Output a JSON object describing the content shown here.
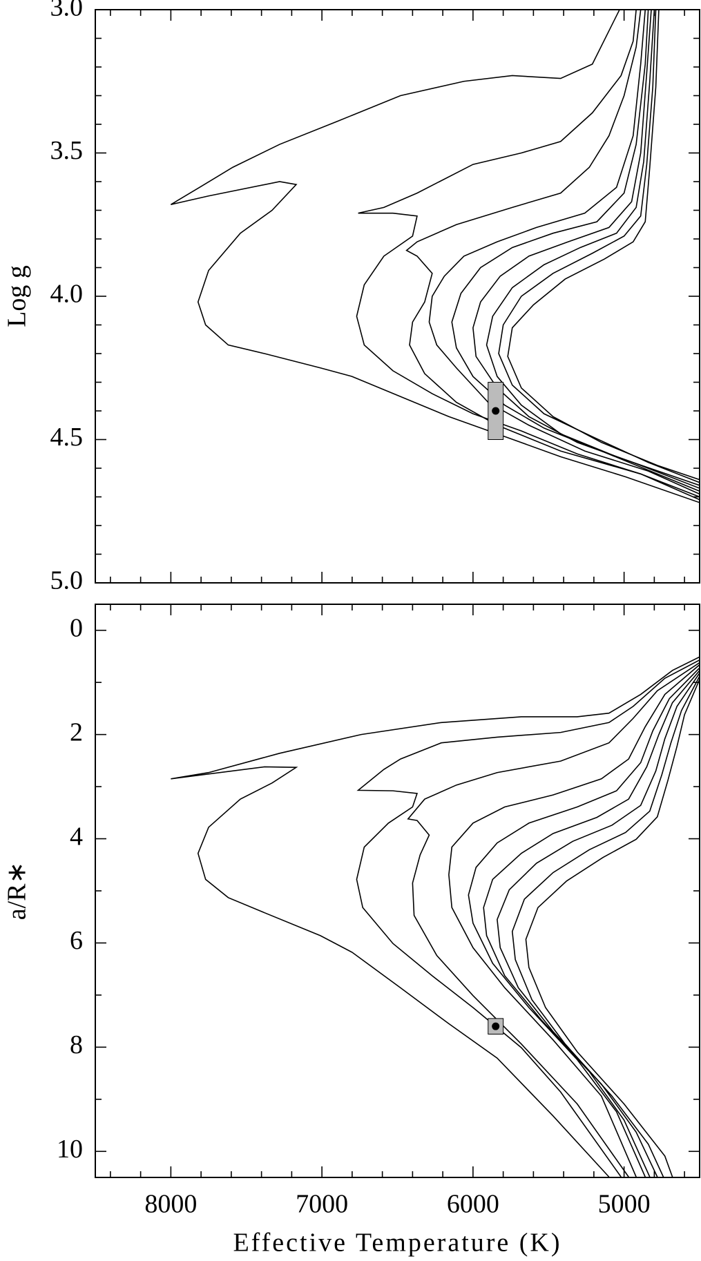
{
  "chart_data": [
    {
      "type": "line",
      "ylabel": "Log g",
      "color": "#000000",
      "xlim": [
        8500,
        4500
      ],
      "ylim": [
        5,
        3
      ],
      "xticks": [
        8000,
        7000,
        6000,
        5000
      ],
      "xminorticks": [
        8400,
        8200,
        7800,
        7600,
        7400,
        7200,
        6800,
        6600,
        6400,
        6200,
        5800,
        5600,
        5400,
        5200,
        4800,
        4600
      ],
      "yticks": [
        {
          "value": 3,
          "label": "3.0"
        },
        3.5,
        {
          "value": 4,
          "label": "4.0"
        },
        4.5,
        {
          "value": 5,
          "label": "5.0"
        }
      ],
      "yminorticks": [
        3.1,
        3.2,
        3.3,
        3.4,
        3.6,
        3.7,
        3.8,
        3.9,
        4.1,
        4.2,
        4.3,
        4.4,
        4.6,
        4.7,
        4.8,
        4.9
      ],
      "series": [
        {
          "x": [
            5030,
            5210,
            5420,
            5740,
            6060,
            6480,
            6900,
            7280,
            7590,
            7810,
            8000,
            7750,
            7280,
            7170,
            7330,
            7540,
            7750,
            7820,
            7770,
            7620,
            7380,
            7010,
            6800,
            6480,
            6160,
            5840,
            5420,
            4990,
            4500
          ],
          "values": [
            3.0,
            3.19,
            3.24,
            3.23,
            3.25,
            3.3,
            3.39,
            3.47,
            3.55,
            3.62,
            3.68,
            3.65,
            3.6,
            3.61,
            3.7,
            3.78,
            3.91,
            4.02,
            4.1,
            4.17,
            4.2,
            4.25,
            4.28,
            4.35,
            4.42,
            4.48,
            4.56,
            4.63,
            4.72
          ]
        },
        {
          "x": [
            4920,
            4940,
            5020,
            5210,
            5420,
            5680,
            6000,
            6370,
            6590,
            6760,
            6530,
            6370,
            6400,
            6590,
            6720,
            6770,
            6720,
            6530,
            6270,
            6000,
            5680,
            5310,
            4890,
            4500
          ],
          "values": [
            3.0,
            3.11,
            3.23,
            3.36,
            3.46,
            3.5,
            3.54,
            3.64,
            3.69,
            3.71,
            3.71,
            3.72,
            3.79,
            3.86,
            3.96,
            4.07,
            4.17,
            4.26,
            4.34,
            4.41,
            4.47,
            4.55,
            4.62,
            4.71
          ]
        },
        {
          "x": [
            4890,
            4920,
            5000,
            5100,
            5230,
            5420,
            5740,
            6110,
            6370,
            6440,
            6370,
            6270,
            6320,
            6400,
            6420,
            6320,
            6110,
            5840,
            5420,
            4890,
            4500
          ],
          "values": [
            3.0,
            3.13,
            3.3,
            3.44,
            3.55,
            3.64,
            3.69,
            3.75,
            3.81,
            3.84,
            3.86,
            3.92,
            4.02,
            4.09,
            4.17,
            4.27,
            4.37,
            4.45,
            4.54,
            4.62,
            4.7
          ]
        },
        {
          "x": [
            4860,
            4890,
            4940,
            5050,
            5260,
            5580,
            5840,
            6060,
            6190,
            6270,
            6290,
            6240,
            6110,
            5900,
            5630,
            5260,
            4840,
            4500
          ],
          "values": [
            3.0,
            3.19,
            3.44,
            3.62,
            3.71,
            3.76,
            3.81,
            3.86,
            3.93,
            4.0,
            4.09,
            4.17,
            4.25,
            4.37,
            4.45,
            4.54,
            4.61,
            4.69
          ]
        },
        {
          "x": [
            4840,
            4860,
            4920,
            5000,
            5180,
            5470,
            5740,
            5950,
            6080,
            6140,
            6110,
            6000,
            5790,
            5530,
            5150,
            4780,
            4500
          ],
          "values": [
            3.0,
            3.19,
            3.47,
            3.64,
            3.74,
            3.78,
            3.83,
            3.9,
            3.99,
            4.09,
            4.18,
            4.28,
            4.38,
            4.46,
            4.54,
            4.62,
            4.68
          ]
        },
        {
          "x": [
            4820,
            4850,
            4890,
            4950,
            5100,
            5370,
            5630,
            5820,
            5950,
            6000,
            5980,
            5840,
            5630,
            5310,
            4940,
            4500
          ],
          "values": [
            3.0,
            3.22,
            3.5,
            3.67,
            3.76,
            3.81,
            3.86,
            3.93,
            4.02,
            4.11,
            4.21,
            4.32,
            4.42,
            4.51,
            4.58,
            4.67
          ]
        },
        {
          "x": [
            4800,
            4830,
            4870,
            4920,
            5050,
            5290,
            5530,
            5740,
            5870,
            5910,
            5840,
            5680,
            5420,
            5050,
            4500
          ],
          "values": [
            3.0,
            3.25,
            3.53,
            3.69,
            3.78,
            3.83,
            3.89,
            3.97,
            4.07,
            4.17,
            4.28,
            4.38,
            4.48,
            4.56,
            4.66
          ]
        },
        {
          "x": [
            4790,
            4810,
            4850,
            4890,
            5000,
            5210,
            5470,
            5680,
            5800,
            5830,
            5740,
            5530,
            5210,
            4840,
            4500
          ],
          "values": [
            3.0,
            3.27,
            3.54,
            3.72,
            3.79,
            3.85,
            3.92,
            4.0,
            4.1,
            4.2,
            4.31,
            4.41,
            4.49,
            4.58,
            4.65
          ]
        },
        {
          "x": [
            4770,
            4790,
            4830,
            4860,
            4940,
            5130,
            5390,
            5600,
            5740,
            5770,
            5680,
            5470,
            5150,
            4780,
            4500
          ],
          "values": [
            3.0,
            3.27,
            3.55,
            3.74,
            3.81,
            3.87,
            3.94,
            4.03,
            4.11,
            4.21,
            4.32,
            4.42,
            4.51,
            4.59,
            4.64
          ]
        }
      ],
      "point": {
        "x": 5850,
        "y": 4.4,
        "xerr": 50,
        "yerr": 0.1,
        "color": "#bbbbbb"
      }
    },
    {
      "type": "line",
      "ylabel": "a/R∗",
      "xlabel": "Effective Temperature (K)",
      "color": "#000000",
      "xlim": [
        8500,
        4500
      ],
      "ylim": [
        10.5,
        -0.5
      ],
      "xticks": [
        8000,
        7000,
        6000,
        5000
      ],
      "xminorticks": [
        8400,
        8200,
        7800,
        7600,
        7400,
        7200,
        6800,
        6600,
        6400,
        6200,
        5800,
        5600,
        5400,
        5200,
        4800,
        4600
      ],
      "yticks": [
        0,
        2,
        4,
        6,
        8,
        10
      ],
      "yminorticks": [
        1,
        3,
        5,
        7,
        9
      ],
      "series": [
        {
          "x": [
            4500,
            4680,
            4890,
            5100,
            5310,
            5680,
            6210,
            6740,
            7280,
            7750,
            8000,
            7380,
            7170,
            7330,
            7540,
            7750,
            7820,
            7770,
            7620,
            7380,
            7010,
            6800,
            6480,
            6160,
            5840,
            5470,
            5100
          ],
          "values": [
            0.51,
            0.77,
            1.23,
            1.59,
            1.66,
            1.66,
            1.77,
            2.0,
            2.36,
            2.73,
            2.85,
            2.62,
            2.63,
            2.93,
            3.24,
            3.78,
            4.28,
            4.78,
            5.13,
            5.42,
            5.86,
            6.18,
            6.86,
            7.55,
            8.21,
            9.32,
            10.49
          ]
        },
        {
          "x": [
            4500,
            4730,
            4940,
            5100,
            5420,
            5840,
            6210,
            6480,
            6590,
            6760,
            6530,
            6370,
            6400,
            6560,
            6720,
            6770,
            6730,
            6530,
            6270,
            6000,
            5680,
            5420,
            5020
          ],
          "values": [
            0.57,
            0.92,
            1.46,
            1.77,
            1.96,
            2.05,
            2.16,
            2.47,
            2.67,
            3.07,
            3.08,
            3.13,
            3.39,
            3.7,
            4.16,
            4.78,
            5.32,
            6.01,
            6.63,
            7.24,
            8.01,
            8.86,
            10.49
          ]
        },
        {
          "x": [
            4500,
            4780,
            4940,
            5100,
            5420,
            5840,
            6110,
            6320,
            6430,
            6370,
            6290,
            6350,
            6400,
            6390,
            6240,
            6000,
            5680,
            5310,
            4970
          ],
          "values": [
            0.62,
            1.16,
            1.69,
            2.16,
            2.51,
            2.73,
            2.97,
            3.24,
            3.62,
            3.65,
            3.93,
            4.31,
            4.85,
            5.47,
            6.24,
            7.01,
            7.94,
            9.09,
            10.49
          ]
        },
        {
          "x": [
            4500,
            4730,
            4860,
            4970,
            5150,
            5470,
            5790,
            6000,
            6140,
            6160,
            6140,
            6000,
            5790,
            5470,
            5150,
            4920
          ],
          "values": [
            0.66,
            1.23,
            1.85,
            2.47,
            2.85,
            3.16,
            3.39,
            3.7,
            4.16,
            4.69,
            5.32,
            6.09,
            6.86,
            7.86,
            8.94,
            10.49
          ]
        },
        {
          "x": [
            4500,
            4700,
            4810,
            4890,
            5050,
            5310,
            5630,
            5840,
            5980,
            6030,
            6000,
            5870,
            5630,
            5310,
            5050,
            4860
          ],
          "values": [
            0.72,
            1.31,
            1.93,
            2.54,
            3.08,
            3.39,
            3.7,
            4.08,
            4.55,
            5.08,
            5.62,
            6.39,
            7.24,
            8.24,
            9.24,
            10.49
          ]
        },
        {
          "x": [
            4500,
            4680,
            4770,
            4850,
            4970,
            5180,
            5470,
            5680,
            5870,
            5930,
            5910,
            5790,
            5550,
            5230,
            5000,
            4830
          ],
          "values": [
            0.77,
            1.39,
            2.0,
            2.62,
            3.24,
            3.59,
            3.9,
            4.28,
            4.78,
            5.32,
            5.86,
            6.63,
            7.47,
            8.47,
            9.4,
            10.49
          ]
        },
        {
          "x": [
            4500,
            4650,
            4730,
            4790,
            4890,
            5080,
            5340,
            5580,
            5760,
            5840,
            5820,
            5700,
            5470,
            5150,
            4920,
            4780
          ],
          "values": [
            0.82,
            1.46,
            2.08,
            2.7,
            3.36,
            3.74,
            4.05,
            4.47,
            4.98,
            5.55,
            6.09,
            6.86,
            7.7,
            8.71,
            9.63,
            10.49
          ]
        },
        {
          "x": [
            4500,
            4620,
            4690,
            4750,
            4830,
            4990,
            5230,
            5470,
            5660,
            5740,
            5720,
            5610,
            5390,
            5080,
            4840,
            4740
          ],
          "values": [
            0.88,
            1.54,
            2.16,
            2.77,
            3.47,
            3.88,
            4.21,
            4.65,
            5.16,
            5.78,
            6.32,
            7.09,
            7.94,
            8.94,
            9.86,
            10.49
          ]
        },
        {
          "x": [
            4500,
            4600,
            4650,
            4710,
            4780,
            4920,
            5140,
            5380,
            5570,
            5650,
            5630,
            5520,
            5310,
            5000,
            4730,
            4680
          ],
          "values": [
            0.94,
            1.62,
            2.23,
            2.88,
            3.58,
            4.01,
            4.36,
            4.81,
            5.32,
            5.93,
            6.47,
            7.24,
            8.09,
            9.09,
            10.09,
            10.49
          ]
        }
      ],
      "point": {
        "x": 5850,
        "y": 7.6,
        "xerr": 50,
        "yerr": 0.15,
        "color": "#bbbbbb"
      }
    }
  ]
}
